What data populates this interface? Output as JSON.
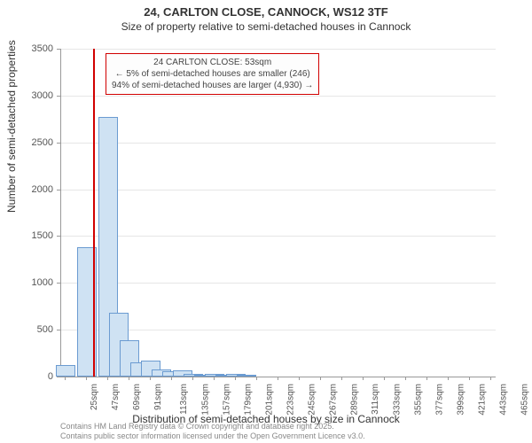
{
  "header": {
    "title": "24, CARLTON CLOSE, CANNOCK, WS12 3TF",
    "subtitle": "Size of property relative to semi-detached houses in Cannock"
  },
  "chart": {
    "type": "histogram",
    "ylabel": "Number of semi-detached properties",
    "xlabel": "Distribution of semi-detached houses by size in Cannock",
    "ylim": [
      0,
      3500
    ],
    "ytick_step": 500,
    "yticks": [
      0,
      500,
      1000,
      1500,
      2000,
      2500,
      3000,
      3500
    ],
    "xticks": [
      "25sqm",
      "47sqm",
      "69sqm",
      "91sqm",
      "113sqm",
      "135sqm",
      "157sqm",
      "179sqm",
      "201sqm",
      "223sqm",
      "245sqm",
      "267sqm",
      "289sqm",
      "311sqm",
      "333sqm",
      "355sqm",
      "377sqm",
      "399sqm",
      "421sqm",
      "443sqm",
      "465sqm"
    ],
    "bars": {
      "categories": [
        "25",
        "36",
        "47",
        "58",
        "69",
        "80",
        "91",
        "102",
        "113",
        "124",
        "135",
        "146",
        "157",
        "168",
        "179",
        "190",
        "201",
        "212"
      ],
      "values": [
        120,
        0,
        1380,
        0,
        2770,
        680,
        390,
        150,
        170,
        80,
        60,
        70,
        30,
        20,
        30,
        15,
        30,
        15
      ]
    },
    "bar_fill": "#cfe2f3",
    "bar_stroke": "#6b9bd1",
    "grid_color": "#e6e6e6",
    "axis_color": "#999999",
    "background_color": "#ffffff",
    "marker": {
      "color": "#d10000",
      "x_value": 53,
      "x_range": [
        25,
        476
      ]
    },
    "annotation": {
      "line1": "24 CARLTON CLOSE: 53sqm",
      "line2": "← 5% of semi-detached houses are smaller (246)",
      "line3": "94% of semi-detached houses are larger (4,930) →",
      "border_color": "#d10000"
    }
  },
  "attribution": {
    "line1": "Contains HM Land Registry data © Crown copyright and database right 2025.",
    "line2": "Contains public sector information licensed under the Open Government Licence v3.0."
  }
}
